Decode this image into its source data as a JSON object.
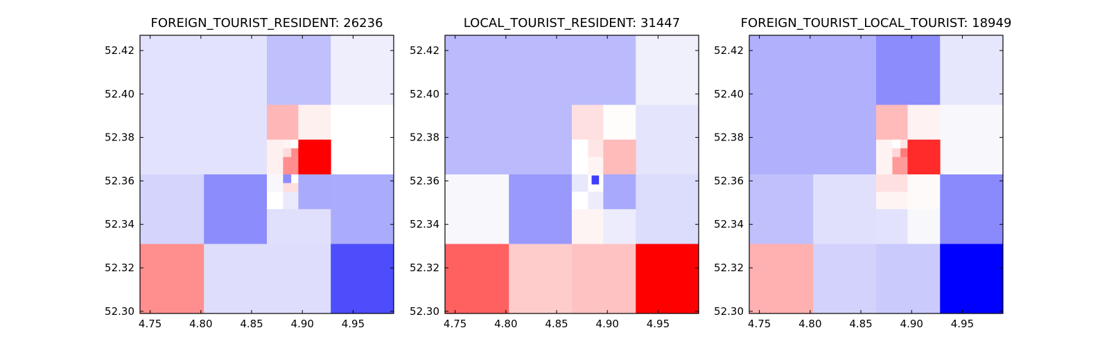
{
  "chart_data": [
    {
      "type": "heatmap",
      "title": "FOREIGN_TOURIST_RESIDENT: 26236",
      "xlim": [
        4.74,
        4.99
      ],
      "ylim": [
        52.299,
        52.427
      ],
      "xticks": [
        "4.75",
        "4.80",
        "4.85",
        "4.90",
        "4.95"
      ],
      "yticks": [
        "52.30",
        "52.32",
        "52.34",
        "52.36",
        "52.38",
        "52.40",
        "52.42"
      ],
      "grid": false,
      "cells": [
        {
          "x0": 4.74,
          "x1": 4.865,
          "y0": 52.363,
          "y1": 52.427,
          "color": "#e2e2fc"
        },
        {
          "x0": 4.865,
          "x1": 4.928,
          "y0": 52.395,
          "y1": 52.427,
          "color": "#c0c0fc"
        },
        {
          "x0": 4.928,
          "x1": 4.99,
          "y0": 52.395,
          "y1": 52.427,
          "color": "#eeeefc"
        },
        {
          "x0": 4.865,
          "x1": 4.896,
          "y0": 52.379,
          "y1": 52.395,
          "color": "#ffb6b6"
        },
        {
          "x0": 4.896,
          "x1": 4.928,
          "y0": 52.379,
          "y1": 52.395,
          "color": "#fff0f0"
        },
        {
          "x0": 4.928,
          "x1": 4.99,
          "y0": 52.363,
          "y1": 52.395,
          "color": "#ffffff"
        },
        {
          "x0": 4.865,
          "x1": 4.881,
          "y0": 52.363,
          "y1": 52.379,
          "color": "#fff0f0"
        },
        {
          "x0": 4.881,
          "x1": 4.889,
          "y0": 52.375,
          "y1": 52.379,
          "color": "#fff4f4"
        },
        {
          "x0": 4.889,
          "x1": 4.896,
          "y0": 52.375,
          "y1": 52.379,
          "color": "#ffffff"
        },
        {
          "x0": 4.881,
          "x1": 4.889,
          "y0": 52.371,
          "y1": 52.375,
          "color": "#ffdada"
        },
        {
          "x0": 4.889,
          "x1": 4.896,
          "y0": 52.371,
          "y1": 52.375,
          "color": "#ff8a8a"
        },
        {
          "x0": 4.881,
          "x1": 4.896,
          "y0": 52.363,
          "y1": 52.371,
          "color": "#ff8f8f"
        },
        {
          "x0": 4.896,
          "x1": 4.928,
          "y0": 52.363,
          "y1": 52.379,
          "color": "#ff0000"
        },
        {
          "x0": 4.74,
          "x1": 4.803,
          "y0": 52.331,
          "y1": 52.363,
          "color": "#d4d4fc"
        },
        {
          "x0": 4.803,
          "x1": 4.865,
          "y0": 52.331,
          "y1": 52.363,
          "color": "#8c8cfc"
        },
        {
          "x0": 4.865,
          "x1": 4.881,
          "y0": 52.355,
          "y1": 52.363,
          "color": "#f8f8fc"
        },
        {
          "x0": 4.881,
          "x1": 4.889,
          "y0": 52.359,
          "y1": 52.363,
          "color": "#8c8cfc"
        },
        {
          "x0": 4.889,
          "x1": 4.896,
          "y0": 52.359,
          "y1": 52.363,
          "color": "#ffffff"
        },
        {
          "x0": 4.881,
          "x1": 4.896,
          "y0": 52.355,
          "y1": 52.359,
          "color": "#ffdede"
        },
        {
          "x0": 4.865,
          "x1": 4.881,
          "y0": 52.347,
          "y1": 52.355,
          "color": "#ffffff"
        },
        {
          "x0": 4.881,
          "x1": 4.896,
          "y0": 52.347,
          "y1": 52.355,
          "color": "#eaeafc"
        },
        {
          "x0": 4.896,
          "x1": 4.928,
          "y0": 52.347,
          "y1": 52.363,
          "color": "#aaaafc"
        },
        {
          "x0": 4.865,
          "x1": 4.928,
          "y0": 52.331,
          "y1": 52.347,
          "color": "#e0e0fc"
        },
        {
          "x0": 4.928,
          "x1": 4.99,
          "y0": 52.331,
          "y1": 52.363,
          "color": "#ababfc"
        },
        {
          "x0": 4.74,
          "x1": 4.803,
          "y0": 52.299,
          "y1": 52.331,
          "color": "#ff8f8f"
        },
        {
          "x0": 4.803,
          "x1": 4.928,
          "y0": 52.299,
          "y1": 52.331,
          "color": "#dedefc"
        },
        {
          "x0": 4.928,
          "x1": 4.99,
          "y0": 52.299,
          "y1": 52.331,
          "color": "#4d4dfc"
        }
      ]
    },
    {
      "type": "heatmap",
      "title": "LOCAL_TOURIST_RESIDENT: 31447",
      "xlim": [
        4.74,
        4.99
      ],
      "ylim": [
        52.299,
        52.427
      ],
      "xticks": [
        "4.75",
        "4.80",
        "4.85",
        "4.90",
        "4.95"
      ],
      "yticks": [
        "52.30",
        "52.32",
        "52.34",
        "52.36",
        "52.38",
        "52.40",
        "52.42"
      ],
      "grid": false,
      "cells": [
        {
          "x0": 4.74,
          "x1": 4.928,
          "y0": 52.395,
          "y1": 52.427,
          "color": "#babafc"
        },
        {
          "x0": 4.928,
          "x1": 4.99,
          "y0": 52.395,
          "y1": 52.427,
          "color": "#f0f0fc"
        },
        {
          "x0": 4.74,
          "x1": 4.865,
          "y0": 52.363,
          "y1": 52.395,
          "color": "#babafc"
        },
        {
          "x0": 4.865,
          "x1": 4.896,
          "y0": 52.379,
          "y1": 52.395,
          "color": "#ffe0e0"
        },
        {
          "x0": 4.896,
          "x1": 4.928,
          "y0": 52.379,
          "y1": 52.395,
          "color": "#fffcfc"
        },
        {
          "x0": 4.928,
          "x1": 4.99,
          "y0": 52.363,
          "y1": 52.395,
          "color": "#e4e4fc"
        },
        {
          "x0": 4.865,
          "x1": 4.881,
          "y0": 52.371,
          "y1": 52.379,
          "color": "#ffffff"
        },
        {
          "x0": 4.881,
          "x1": 4.896,
          "y0": 52.371,
          "y1": 52.379,
          "color": "#ffe6e6"
        },
        {
          "x0": 4.865,
          "x1": 4.881,
          "y0": 52.363,
          "y1": 52.371,
          "color": "#ffffff"
        },
        {
          "x0": 4.881,
          "x1": 4.896,
          "y0": 52.363,
          "y1": 52.371,
          "color": "#fff4f4"
        },
        {
          "x0": 4.896,
          "x1": 4.928,
          "y0": 52.363,
          "y1": 52.379,
          "color": "#ffbaba"
        },
        {
          "x0": 4.74,
          "x1": 4.803,
          "y0": 52.331,
          "y1": 52.363,
          "color": "#f8f8fc"
        },
        {
          "x0": 4.803,
          "x1": 4.865,
          "y0": 52.331,
          "y1": 52.363,
          "color": "#9999fc"
        },
        {
          "x0": 4.865,
          "x1": 4.881,
          "y0": 52.355,
          "y1": 52.363,
          "color": "#e8e8fc"
        },
        {
          "x0": 4.881,
          "x1": 4.896,
          "y0": 52.355,
          "y1": 52.363,
          "color": "#ffffff"
        },
        {
          "x0": 4.8845,
          "x1": 4.8915,
          "y0": 52.3585,
          "y1": 52.3625,
          "color": "#3e3efc"
        },
        {
          "x0": 4.865,
          "x1": 4.881,
          "y0": 52.347,
          "y1": 52.355,
          "color": "#ffffff"
        },
        {
          "x0": 4.881,
          "x1": 4.896,
          "y0": 52.347,
          "y1": 52.355,
          "color": "#ececfc"
        },
        {
          "x0": 4.896,
          "x1": 4.928,
          "y0": 52.347,
          "y1": 52.363,
          "color": "#a8a8fc"
        },
        {
          "x0": 4.865,
          "x1": 4.896,
          "y0": 52.331,
          "y1": 52.347,
          "color": "#fff4f4"
        },
        {
          "x0": 4.896,
          "x1": 4.928,
          "y0": 52.331,
          "y1": 52.347,
          "color": "#ececfc"
        },
        {
          "x0": 4.928,
          "x1": 4.99,
          "y0": 52.331,
          "y1": 52.363,
          "color": "#dcdcfc"
        },
        {
          "x0": 4.74,
          "x1": 4.803,
          "y0": 52.299,
          "y1": 52.331,
          "color": "#ff6161"
        },
        {
          "x0": 4.803,
          "x1": 4.865,
          "y0": 52.299,
          "y1": 52.331,
          "color": "#ffcccc"
        },
        {
          "x0": 4.865,
          "x1": 4.928,
          "y0": 52.299,
          "y1": 52.331,
          "color": "#ffc2c2"
        },
        {
          "x0": 4.928,
          "x1": 4.99,
          "y0": 52.299,
          "y1": 52.331,
          "color": "#ff0000"
        }
      ]
    },
    {
      "type": "heatmap",
      "title": "FOREIGN_TOURIST_LOCAL_TOURIST: 18949",
      "xlim": [
        4.74,
        4.99
      ],
      "ylim": [
        52.299,
        52.427
      ],
      "xticks": [
        "4.75",
        "4.80",
        "4.85",
        "4.90",
        "4.95"
      ],
      "yticks": [
        "52.30",
        "52.32",
        "52.34",
        "52.36",
        "52.38",
        "52.40",
        "52.42"
      ],
      "grid": false,
      "cells": [
        {
          "x0": 4.74,
          "x1": 4.865,
          "y0": 52.363,
          "y1": 52.427,
          "color": "#b0b0fc"
        },
        {
          "x0": 4.865,
          "x1": 4.928,
          "y0": 52.395,
          "y1": 52.427,
          "color": "#8c8cfc"
        },
        {
          "x0": 4.928,
          "x1": 4.99,
          "y0": 52.395,
          "y1": 52.427,
          "color": "#e6e6fc"
        },
        {
          "x0": 4.865,
          "x1": 4.896,
          "y0": 52.379,
          "y1": 52.395,
          "color": "#ffbaba"
        },
        {
          "x0": 4.896,
          "x1": 4.928,
          "y0": 52.379,
          "y1": 52.395,
          "color": "#fff2f2"
        },
        {
          "x0": 4.928,
          "x1": 4.99,
          "y0": 52.363,
          "y1": 52.395,
          "color": "#f8f8fc"
        },
        {
          "x0": 4.865,
          "x1": 4.881,
          "y0": 52.363,
          "y1": 52.379,
          "color": "#fff2f2"
        },
        {
          "x0": 4.881,
          "x1": 4.889,
          "y0": 52.375,
          "y1": 52.379,
          "color": "#ffffff"
        },
        {
          "x0": 4.889,
          "x1": 4.896,
          "y0": 52.375,
          "y1": 52.379,
          "color": "#ffe4e4"
        },
        {
          "x0": 4.881,
          "x1": 4.889,
          "y0": 52.371,
          "y1": 52.375,
          "color": "#ffd6d6"
        },
        {
          "x0": 4.889,
          "x1": 4.896,
          "y0": 52.371,
          "y1": 52.375,
          "color": "#ff7a7a"
        },
        {
          "x0": 4.881,
          "x1": 4.896,
          "y0": 52.363,
          "y1": 52.371,
          "color": "#ff9a9a"
        },
        {
          "x0": 4.896,
          "x1": 4.928,
          "y0": 52.363,
          "y1": 52.379,
          "color": "#ff2a2a"
        },
        {
          "x0": 4.74,
          "x1": 4.803,
          "y0": 52.331,
          "y1": 52.363,
          "color": "#c0c0fc"
        },
        {
          "x0": 4.803,
          "x1": 4.865,
          "y0": 52.331,
          "y1": 52.363,
          "color": "#e0e0fc"
        },
        {
          "x0": 4.865,
          "x1": 4.896,
          "y0": 52.355,
          "y1": 52.363,
          "color": "#ffe0e0"
        },
        {
          "x0": 4.865,
          "x1": 4.896,
          "y0": 52.347,
          "y1": 52.355,
          "color": "#fff4f4"
        },
        {
          "x0": 4.896,
          "x1": 4.928,
          "y0": 52.347,
          "y1": 52.363,
          "color": "#fffafa"
        },
        {
          "x0": 4.865,
          "x1": 4.896,
          "y0": 52.331,
          "y1": 52.347,
          "color": "#e2e2fc"
        },
        {
          "x0": 4.896,
          "x1": 4.928,
          "y0": 52.331,
          "y1": 52.347,
          "color": "#f8f8fc"
        },
        {
          "x0": 4.928,
          "x1": 4.99,
          "y0": 52.331,
          "y1": 52.363,
          "color": "#8a8afc"
        },
        {
          "x0": 4.74,
          "x1": 4.803,
          "y0": 52.299,
          "y1": 52.331,
          "color": "#ffb0b0"
        },
        {
          "x0": 4.803,
          "x1": 4.865,
          "y0": 52.299,
          "y1": 52.331,
          "color": "#d2d2fc"
        },
        {
          "x0": 4.865,
          "x1": 4.928,
          "y0": 52.299,
          "y1": 52.331,
          "color": "#cacafc"
        },
        {
          "x0": 4.928,
          "x1": 4.99,
          "y0": 52.299,
          "y1": 52.331,
          "color": "#0000ff"
        }
      ]
    }
  ]
}
